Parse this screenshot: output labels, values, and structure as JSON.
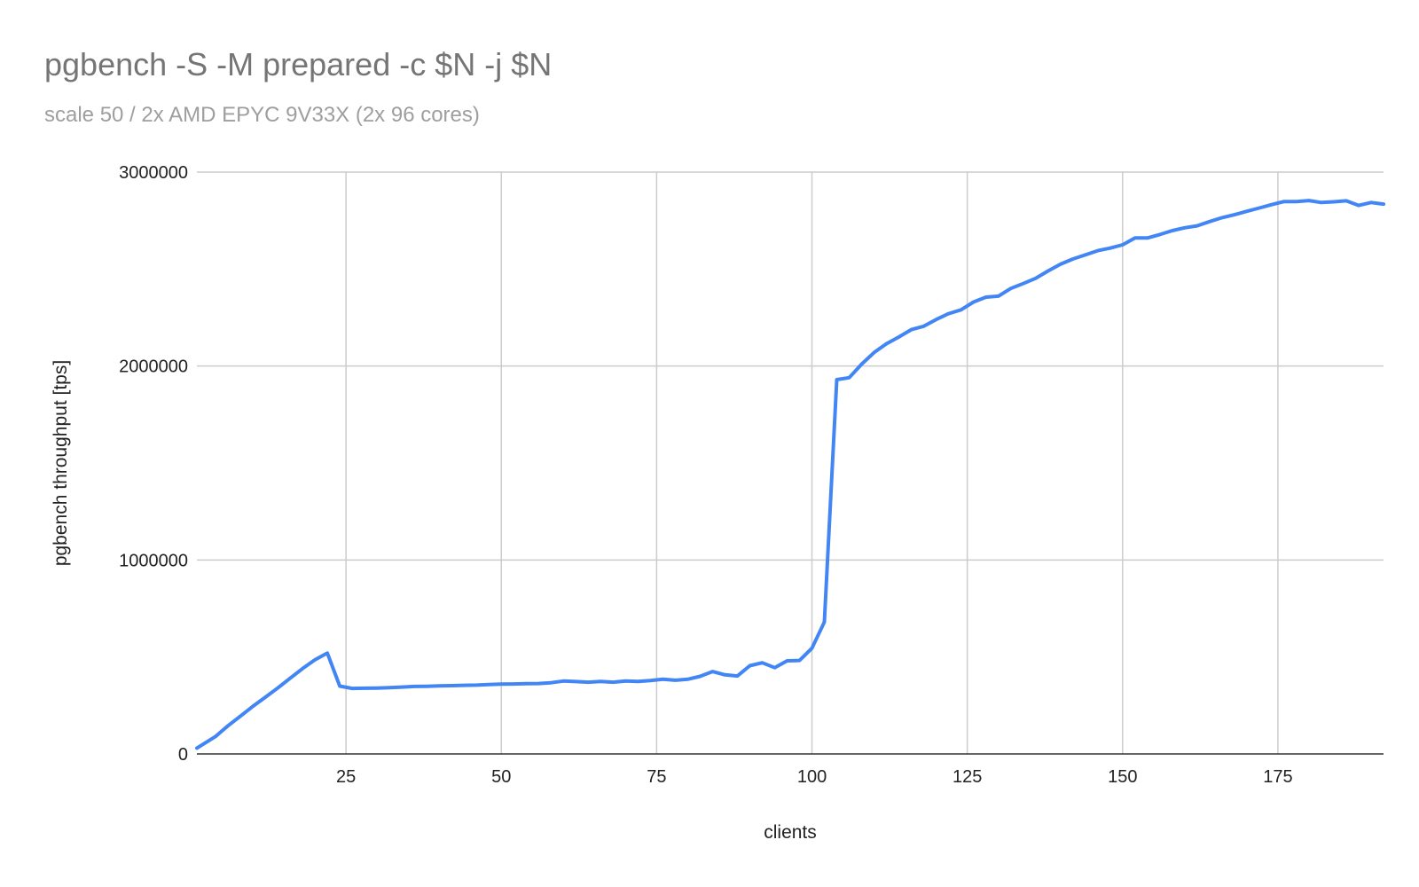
{
  "chart_data": {
    "type": "line",
    "title": "pgbench -S -M prepared -c $N -j $N",
    "subtitle": "scale 50 / 2x AMD EPYC 9V33X (2x 96 cores)",
    "xlabel": "clients",
    "ylabel": "pgbench throughput [tps]",
    "xlim": [
      1,
      192
    ],
    "ylim": [
      0,
      3000000
    ],
    "x_ticks": [
      25,
      50,
      75,
      100,
      125,
      150,
      175
    ],
    "y_ticks": [
      0,
      1000000,
      2000000,
      3000000
    ],
    "x_tick_labels": [
      "25",
      "50",
      "75",
      "100",
      "125",
      "150",
      "175"
    ],
    "y_tick_labels": [
      "0",
      "1000000",
      "2000000",
      "3000000"
    ],
    "grid": true,
    "legend": "none",
    "color": "#4285f4",
    "series": [
      {
        "x": [
          1,
          4,
          6,
          8,
          10,
          12,
          14,
          16,
          18,
          20,
          22,
          24,
          26,
          28,
          30,
          32,
          34,
          36,
          38,
          40,
          42,
          44,
          46,
          48,
          50,
          52,
          54,
          56,
          58,
          60,
          62,
          64,
          66,
          68,
          70,
          72,
          74,
          76,
          78,
          80,
          82,
          84,
          86,
          88,
          90,
          92,
          94,
          96,
          98,
          100,
          102,
          104,
          106,
          108,
          110,
          112,
          114,
          116,
          118,
          120,
          122,
          124,
          126,
          128,
          130,
          132,
          134,
          136,
          138,
          140,
          142,
          144,
          146,
          148,
          150,
          152,
          154,
          156,
          158,
          160,
          162,
          164,
          166,
          168,
          170,
          172,
          174,
          176,
          178,
          180,
          182,
          184,
          186,
          188,
          190,
          192
        ],
        "y": [
          30000,
          90000,
          145000,
          195000,
          245000,
          292000,
          340000,
          390000,
          440000,
          485000,
          520000,
          350000,
          338000,
          339000,
          340000,
          342000,
          345000,
          348000,
          349000,
          351000,
          352000,
          354000,
          355000,
          358000,
          360000,
          361000,
          362000,
          363000,
          367000,
          376000,
          373000,
          370000,
          374000,
          370000,
          376000,
          374000,
          378000,
          385000,
          380000,
          385000,
          400000,
          425000,
          408000,
          402000,
          455000,
          470000,
          445000,
          480000,
          482000,
          545000,
          680000,
          1930000,
          1940000,
          2010000,
          2070000,
          2115000,
          2150000,
          2188000,
          2205000,
          2240000,
          2270000,
          2290000,
          2330000,
          2355000,
          2360000,
          2400000,
          2425000,
          2452000,
          2490000,
          2525000,
          2552000,
          2573000,
          2595000,
          2608000,
          2625000,
          2660000,
          2660000,
          2678000,
          2698000,
          2713000,
          2723000,
          2745000,
          2765000,
          2780000,
          2798000,
          2815000,
          2832000,
          2848000,
          2848000,
          2853000,
          2843000,
          2847000,
          2852000,
          2828000,
          2843000,
          2835000
        ]
      }
    ]
  }
}
